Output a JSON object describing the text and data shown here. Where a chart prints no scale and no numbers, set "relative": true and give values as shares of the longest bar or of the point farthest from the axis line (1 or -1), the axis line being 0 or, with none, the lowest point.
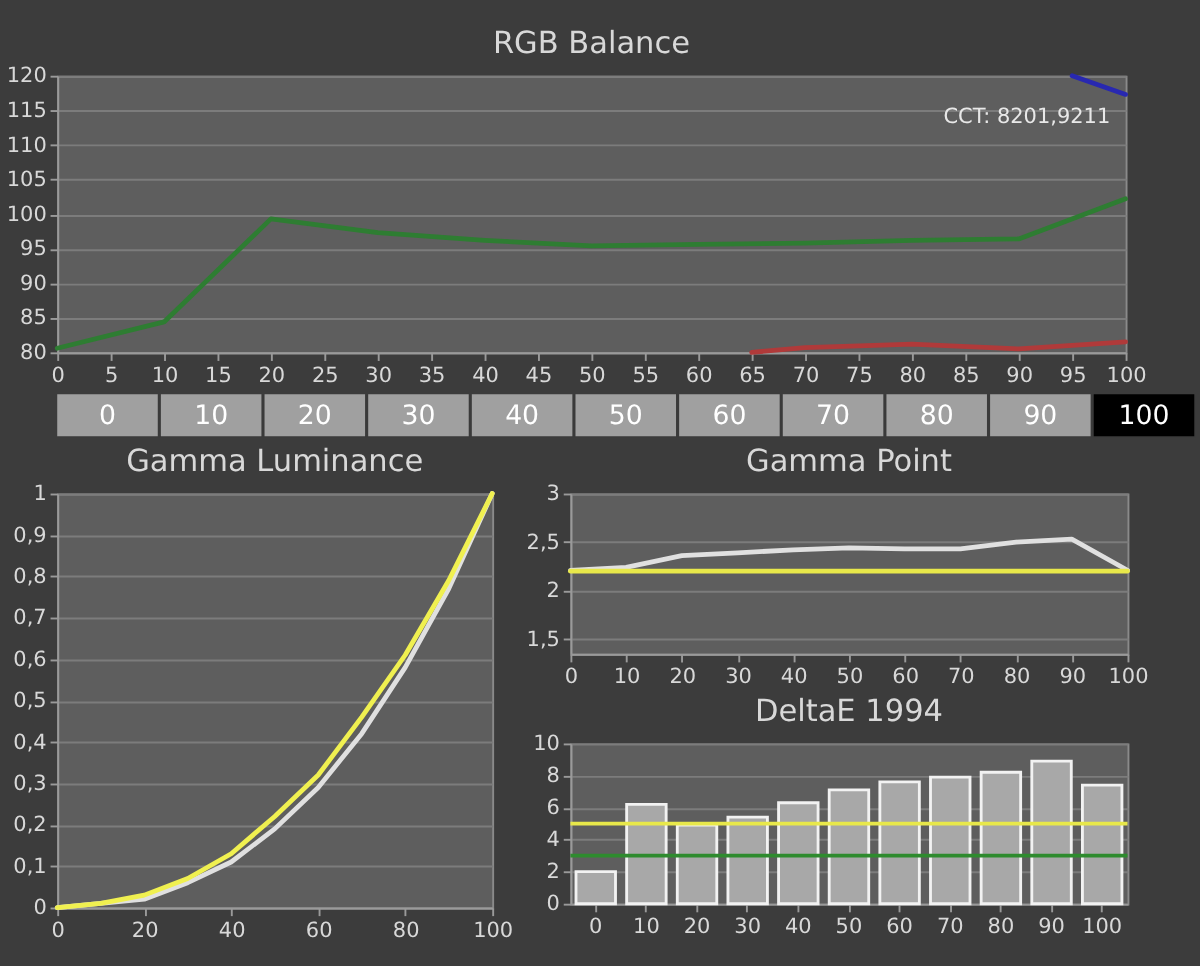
{
  "chart_data": [
    {
      "type": "line",
      "title": "RGB Balance",
      "x": [
        0,
        10,
        20,
        30,
        40,
        50,
        60,
        70,
        80,
        90,
        100
      ],
      "series": [
        {
          "color": "#2e7d32",
          "values": [
            80.6,
            84.4,
            99.3,
            97.3,
            96.2,
            95.4,
            95.6,
            95.8,
            96.2,
            96.4,
            102.2
          ]
        },
        {
          "color": "#b03a3a",
          "x": [
            65,
            70,
            80,
            90,
            100
          ],
          "values": [
            80,
            80.7,
            81.2,
            80.5,
            81.5
          ]
        },
        {
          "color": "#2828b0",
          "x": [
            95,
            100
          ],
          "values": [
            120,
            117.3
          ]
        }
      ],
      "xlim": [
        0,
        100
      ],
      "xticks": [
        0,
        5,
        10,
        15,
        20,
        25,
        30,
        35,
        40,
        45,
        50,
        55,
        60,
        65,
        70,
        75,
        80,
        85,
        90,
        95,
        100
      ],
      "ylim": [
        80,
        120
      ],
      "yticks": [
        80,
        85,
        90,
        95,
        100,
        105,
        110,
        115,
        120
      ],
      "grid": "y",
      "annotations": [
        "CCT: 8201,9211"
      ]
    },
    {
      "type": "bar",
      "relative": true,
      "categories": [
        "0",
        "10",
        "20",
        "30",
        "40",
        "50",
        "60",
        "70",
        "80",
        "90",
        "100"
      ],
      "values": [
        1,
        1,
        1,
        1,
        1,
        1,
        1,
        1,
        1,
        1,
        1
      ],
      "colors": [
        "#a0a0a0",
        "#a0a0a0",
        "#a0a0a0",
        "#a0a0a0",
        "#a0a0a0",
        "#a0a0a0",
        "#a0a0a0",
        "#a0a0a0",
        "#a0a0a0",
        "#a0a0a0",
        "#000000"
      ]
    },
    {
      "type": "line",
      "title": "Gamma Luminance",
      "x": [
        0,
        10,
        20,
        30,
        40,
        50,
        60,
        70,
        80,
        90,
        100
      ],
      "series": [
        {
          "color": "#e0e0e0",
          "values": [
            0,
            0.01,
            0.02,
            0.06,
            0.11,
            0.19,
            0.29,
            0.42,
            0.58,
            0.77,
            1
          ]
        },
        {
          "color": "#f0f050",
          "values": [
            0,
            0.01,
            0.03,
            0.07,
            0.13,
            0.22,
            0.32,
            0.46,
            0.61,
            0.79,
            1
          ]
        }
      ],
      "xlim": [
        0,
        100
      ],
      "xticks": [
        0,
        20,
        40,
        60,
        80,
        100
      ],
      "ylim": [
        0,
        1
      ],
      "yticks": [
        0,
        {
          "value": 0.1,
          "label": "0,1"
        },
        {
          "value": 0.2,
          "label": "0,2"
        },
        {
          "value": 0.3,
          "label": "0,3"
        },
        {
          "value": 0.4,
          "label": "0,4"
        },
        {
          "value": 0.5,
          "label": "0,5"
        },
        {
          "value": 0.6,
          "label": "0,6"
        },
        {
          "value": 0.7,
          "label": "0,7"
        },
        {
          "value": 0.8,
          "label": "0,8"
        },
        {
          "value": 0.9,
          "label": "0,9"
        },
        1
      ],
      "grid": "y"
    },
    {
      "type": "line",
      "title": "Gamma Point",
      "x": [
        0,
        10,
        20,
        30,
        40,
        50,
        60,
        70,
        80,
        90,
        100
      ],
      "series": [
        {
          "color": "#e0e0e0",
          "values": [
            2.21,
            2.24,
            2.36,
            2.39,
            2.42,
            2.44,
            2.43,
            2.43,
            2.5,
            2.53,
            2.21
          ]
        },
        {
          "color": "#e8e84a",
          "values": [
            2.2,
            2.2,
            2.2,
            2.2,
            2.2,
            2.2,
            2.2,
            2.2,
            2.2,
            2.2,
            2.2
          ]
        }
      ],
      "xlim": [
        0,
        100
      ],
      "xticks": [
        0,
        10,
        20,
        30,
        40,
        50,
        60,
        70,
        80,
        90,
        100
      ],
      "ylim": [
        1.35,
        3
      ],
      "yticks": [
        {
          "value": 1.5,
          "label": "1,5"
        },
        2,
        {
          "value": 2.5,
          "label": "2,5"
        },
        3
      ],
      "grid": "y"
    },
    {
      "type": "bar",
      "title": "DeltaE 1994",
      "categories": [
        "0",
        "10",
        "20",
        "30",
        "40",
        "50",
        "60",
        "70",
        "80",
        "90",
        "100"
      ],
      "values": [
        2.0,
        6.2,
        4.9,
        5.4,
        6.3,
        7.1,
        7.6,
        7.9,
        8.2,
        8.9,
        7.4
      ],
      "color": "#a8a8a8",
      "ylim": [
        0,
        10
      ],
      "yticks": [
        0,
        2,
        4,
        6,
        8,
        10
      ],
      "grid": "y",
      "ref_lines": [
        {
          "axis": "y",
          "value": 5,
          "color": "#e8e84a"
        },
        {
          "axis": "y",
          "value": 3,
          "color": "#2e8b2e"
        }
      ]
    }
  ]
}
